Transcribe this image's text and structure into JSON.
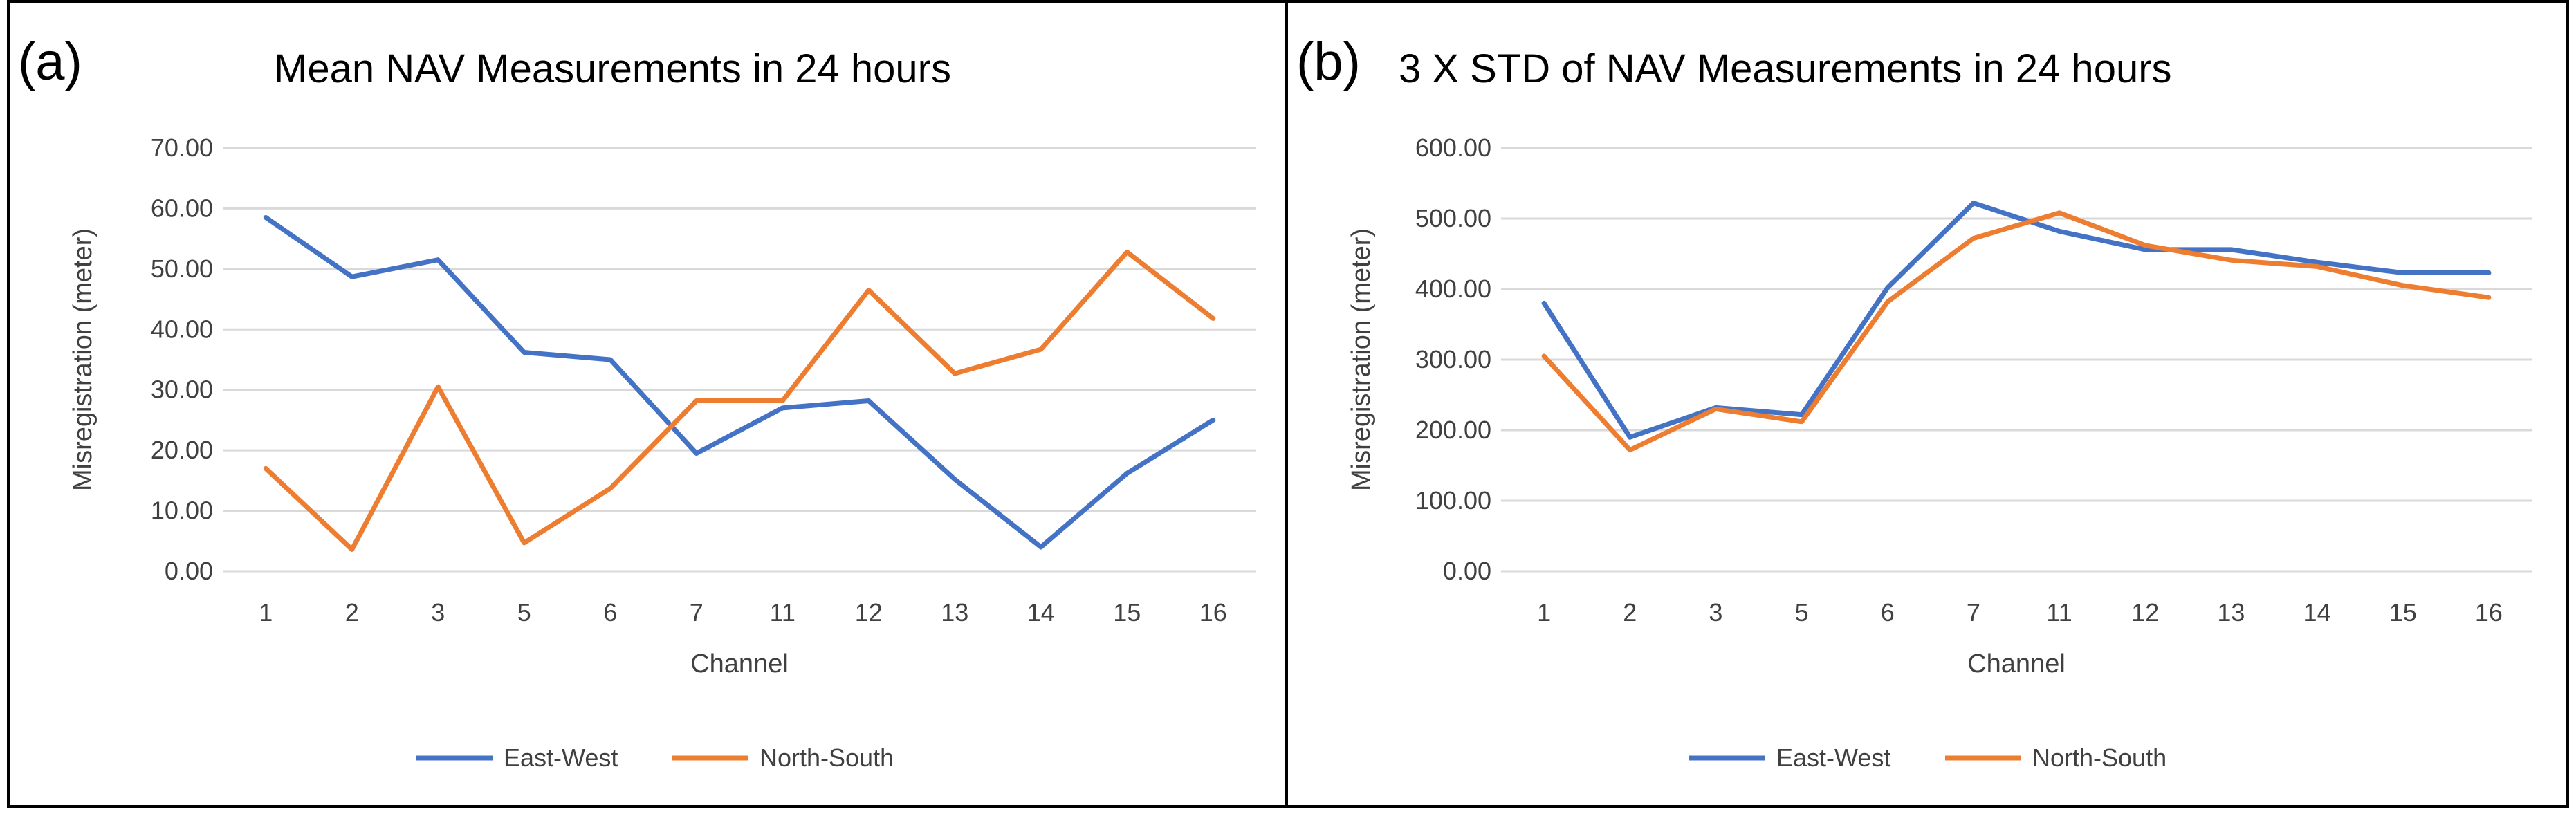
{
  "colors": {
    "east_west": "#4472C4",
    "north_south": "#ED7D31",
    "grid": "#D9D9D9"
  },
  "chart_data": [
    {
      "panel_label": "(a)",
      "type": "line",
      "title": "Mean NAV Measurements in 24 hours",
      "xlabel": "Channel",
      "ylabel": "Misregistration (meter)",
      "categories": [
        "1",
        "2",
        "3",
        "5",
        "6",
        "7",
        "11",
        "12",
        "13",
        "14",
        "15",
        "16"
      ],
      "ylim": [
        0,
        70
      ],
      "yticks": [
        "0.00",
        "10.00",
        "20.00",
        "30.00",
        "40.00",
        "50.00",
        "60.00",
        "70.00"
      ],
      "grid": true,
      "legend": "bottom-center",
      "series": [
        {
          "name": "East-West",
          "color": "#4472C4",
          "values": [
            58.5,
            48.7,
            51.5,
            36.2,
            35.0,
            19.5,
            27.0,
            28.2,
            15.2,
            4.0,
            16.2,
            25.0
          ]
        },
        {
          "name": "North-South",
          "color": "#ED7D31",
          "values": [
            17.0,
            3.6,
            30.5,
            4.7,
            13.7,
            28.2,
            28.2,
            46.5,
            32.7,
            36.7,
            52.8,
            41.8
          ]
        }
      ]
    },
    {
      "panel_label": "(b)",
      "type": "line",
      "title": "3 X STD of NAV Measurements in 24 hours",
      "xlabel": "Channel",
      "ylabel": "Misregistration (meter)",
      "categories": [
        "1",
        "2",
        "3",
        "5",
        "6",
        "7",
        "11",
        "12",
        "13",
        "14",
        "15",
        "16"
      ],
      "ylim": [
        0,
        600
      ],
      "yticks": [
        "0.00",
        "100.00",
        "200.00",
        "300.00",
        "400.00",
        "500.00",
        "600.00"
      ],
      "grid": true,
      "legend": "bottom-center",
      "series": [
        {
          "name": "East-West",
          "color": "#4472C4",
          "values": [
            380,
            190,
            232,
            222,
            402,
            522,
            482,
            456,
            456,
            438,
            423,
            423
          ]
        },
        {
          "name": "North-South",
          "color": "#ED7D31",
          "values": [
            305,
            172,
            230,
            212,
            382,
            472,
            508,
            462,
            441,
            432,
            405,
            388
          ]
        }
      ]
    }
  ]
}
